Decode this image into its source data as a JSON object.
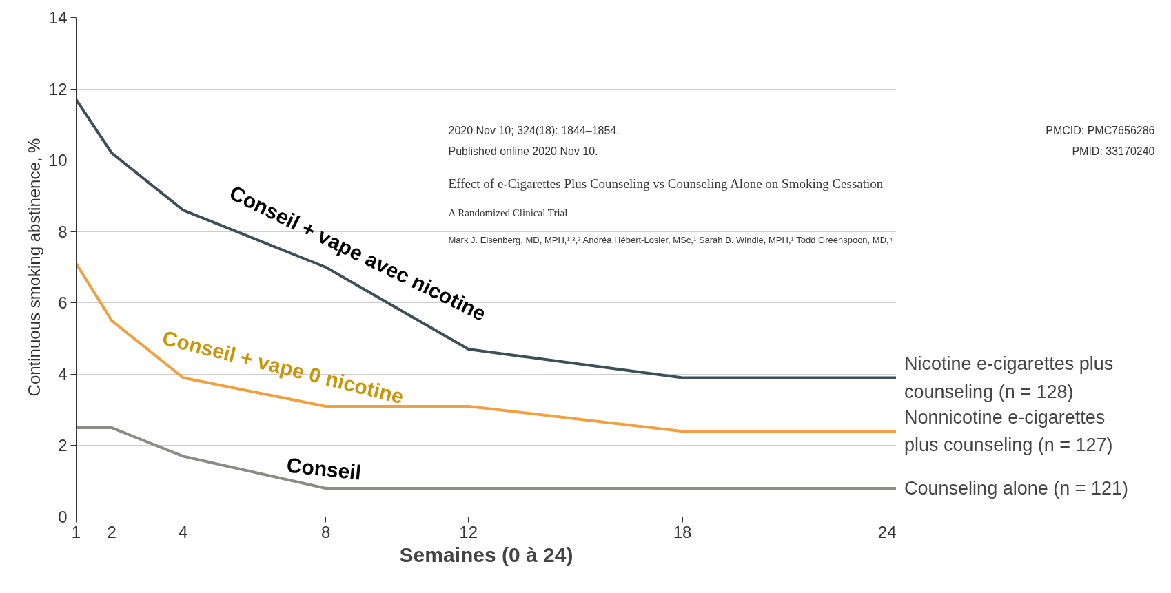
{
  "chart_data": {
    "type": "line",
    "x": [
      1,
      2,
      4,
      8,
      12,
      18,
      24
    ],
    "series": [
      {
        "name": "Nicotine e-cigarettes plus counseling (n = 128)",
        "color": "#3d5059",
        "values": [
          11.7,
          10.2,
          8.6,
          7.0,
          4.7,
          3.9,
          3.9
        ]
      },
      {
        "name": "Nonnicotine e-cigarettes plus counseling (n = 127)",
        "color": "#f0a040",
        "values": [
          7.1,
          5.5,
          3.9,
          3.1,
          3.1,
          2.4,
          2.4
        ]
      },
      {
        "name": "Counseling alone (n = 121)",
        "color": "#8c8c84",
        "values": [
          2.5,
          2.5,
          1.7,
          0.8,
          0.8,
          0.8,
          0.8
        ]
      }
    ],
    "xlabel": "Semaines (0 à 24)",
    "ylabel": "Continuous smoking abstinence, %",
    "xlim": [
      1,
      24
    ],
    "xticks": [
      1,
      2,
      4,
      8,
      12,
      18,
      24
    ],
    "ylim": [
      0,
      14
    ],
    "yticks": [
      0,
      2,
      4,
      6,
      8,
      10,
      12,
      14
    ],
    "grid": "y",
    "legend": false,
    "marker": "none",
    "line_style": "solid",
    "annotations": [
      "Conseil + vape avec nicotine",
      "Conseil + vape 0 nicotine",
      "Conseil",
      "2020 Nov 10; 324(18): 1844–1854.",
      "PMCID: PMC7656286",
      "Published online 2020 Nov 10.",
      "PMID: 33170240",
      "Effect of e-Cigarettes Plus Counseling vs Counseling Alone on Smoking Cessation",
      "A Randomized Clinical Trial",
      "Mark J. Eisenberg, MD, MPH,¹,²,³ Andréa Hébert-Losier, MSc,¹ Sarah B. Windle, MPH,¹ Todd Greenspoon, MD,⁴"
    ]
  }
}
